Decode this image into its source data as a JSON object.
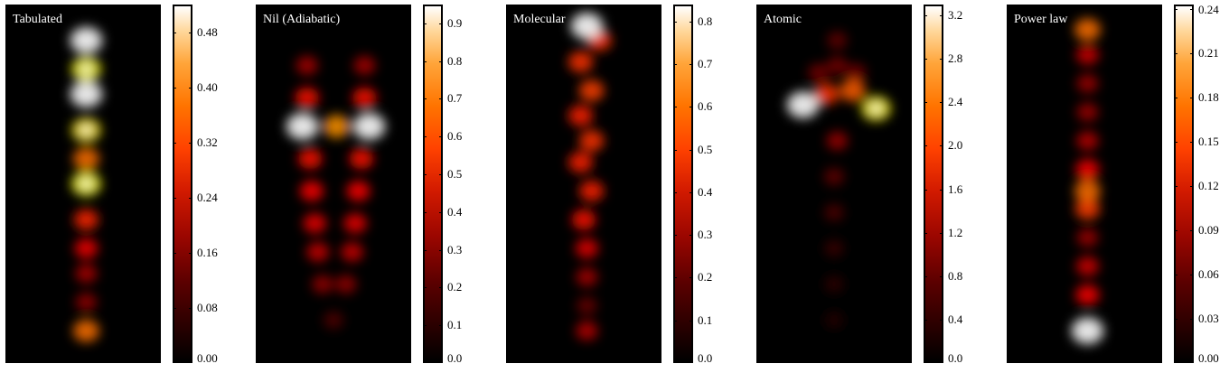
{
  "chart_data": [
    {
      "type": "heatmap",
      "title": "Tabulated",
      "colorbar": {
        "min": 0.0,
        "max": 0.52,
        "ticks": [
          0.0,
          0.08,
          0.16,
          0.24,
          0.32,
          0.4,
          0.48
        ],
        "tick_labels": [
          "0.00",
          "0.08",
          "0.16",
          "0.24",
          "0.32",
          "0.40",
          "0.48"
        ]
      },
      "colormap": "hot",
      "blobs": [
        {
          "x": 0.52,
          "y": 0.1,
          "intensity": 0.52
        },
        {
          "x": 0.52,
          "y": 0.18,
          "intensity": 0.42
        },
        {
          "x": 0.52,
          "y": 0.25,
          "intensity": 0.52
        },
        {
          "x": 0.52,
          "y": 0.35,
          "intensity": 0.4
        },
        {
          "x": 0.52,
          "y": 0.43,
          "intensity": 0.3
        },
        {
          "x": 0.52,
          "y": 0.5,
          "intensity": 0.42
        },
        {
          "x": 0.52,
          "y": 0.6,
          "intensity": 0.24
        },
        {
          "x": 0.52,
          "y": 0.68,
          "intensity": 0.2
        },
        {
          "x": 0.52,
          "y": 0.75,
          "intensity": 0.14
        },
        {
          "x": 0.52,
          "y": 0.83,
          "intensity": 0.12
        },
        {
          "x": 0.52,
          "y": 0.91,
          "intensity": 0.3
        }
      ]
    },
    {
      "type": "heatmap",
      "title": "Nil (Adiabatic)",
      "colorbar": {
        "min": 0.0,
        "max": 0.95,
        "ticks": [
          0.0,
          0.1,
          0.2,
          0.3,
          0.4,
          0.5,
          0.6,
          0.7,
          0.8,
          0.9
        ],
        "tick_labels": [
          "0.0",
          "0.1",
          "0.2",
          "0.3",
          "0.4",
          "0.5",
          "0.6",
          "0.7",
          "0.8",
          "0.9"
        ]
      },
      "colormap": "hot",
      "blobs": [
        {
          "x": 0.3,
          "y": 0.34,
          "intensity": 0.95
        },
        {
          "x": 0.73,
          "y": 0.34,
          "intensity": 0.95
        },
        {
          "x": 0.52,
          "y": 0.34,
          "intensity": 0.6
        },
        {
          "x": 0.33,
          "y": 0.17,
          "intensity": 0.25
        },
        {
          "x": 0.7,
          "y": 0.17,
          "intensity": 0.25
        },
        {
          "x": 0.33,
          "y": 0.26,
          "intensity": 0.4
        },
        {
          "x": 0.7,
          "y": 0.26,
          "intensity": 0.4
        },
        {
          "x": 0.35,
          "y": 0.43,
          "intensity": 0.4
        },
        {
          "x": 0.68,
          "y": 0.43,
          "intensity": 0.4
        },
        {
          "x": 0.36,
          "y": 0.52,
          "intensity": 0.38
        },
        {
          "x": 0.66,
          "y": 0.52,
          "intensity": 0.38
        },
        {
          "x": 0.38,
          "y": 0.61,
          "intensity": 0.35
        },
        {
          "x": 0.64,
          "y": 0.61,
          "intensity": 0.35
        },
        {
          "x": 0.4,
          "y": 0.69,
          "intensity": 0.3
        },
        {
          "x": 0.62,
          "y": 0.69,
          "intensity": 0.3
        },
        {
          "x": 0.43,
          "y": 0.78,
          "intensity": 0.22
        },
        {
          "x": 0.58,
          "y": 0.78,
          "intensity": 0.22
        },
        {
          "x": 0.5,
          "y": 0.88,
          "intensity": 0.12
        }
      ]
    },
    {
      "type": "heatmap",
      "title": "Molecular",
      "colorbar": {
        "min": 0.0,
        "max": 0.84,
        "ticks": [
          0.0,
          0.1,
          0.2,
          0.3,
          0.4,
          0.5,
          0.6,
          0.7,
          0.8
        ],
        "tick_labels": [
          "0.0",
          "0.1",
          "0.2",
          "0.3",
          "0.4",
          "0.5",
          "0.6",
          "0.7",
          "0.8"
        ]
      },
      "colormap": "hot",
      "blobs": [
        {
          "x": 0.52,
          "y": 0.06,
          "intensity": 0.84
        },
        {
          "x": 0.6,
          "y": 0.1,
          "intensity": 0.4
        },
        {
          "x": 0.48,
          "y": 0.16,
          "intensity": 0.4
        },
        {
          "x": 0.55,
          "y": 0.24,
          "intensity": 0.42
        },
        {
          "x": 0.48,
          "y": 0.31,
          "intensity": 0.38
        },
        {
          "x": 0.55,
          "y": 0.38,
          "intensity": 0.4
        },
        {
          "x": 0.48,
          "y": 0.44,
          "intensity": 0.38
        },
        {
          "x": 0.55,
          "y": 0.52,
          "intensity": 0.38
        },
        {
          "x": 0.5,
          "y": 0.6,
          "intensity": 0.35
        },
        {
          "x": 0.52,
          "y": 0.68,
          "intensity": 0.3
        },
        {
          "x": 0.52,
          "y": 0.76,
          "intensity": 0.22
        },
        {
          "x": 0.52,
          "y": 0.84,
          "intensity": 0.14
        },
        {
          "x": 0.52,
          "y": 0.91,
          "intensity": 0.24
        }
      ]
    },
    {
      "type": "heatmap",
      "title": "Atomic",
      "colorbar": {
        "min": 0.0,
        "max": 3.3,
        "ticks": [
          0.0,
          0.4,
          0.8,
          1.2,
          1.6,
          2.0,
          2.4,
          2.8,
          3.2
        ],
        "tick_labels": [
          "0.0",
          "0.4",
          "0.8",
          "1.2",
          "1.6",
          "2.0",
          "2.4",
          "2.8",
          "3.2"
        ]
      },
      "colormap": "hot",
      "blobs": [
        {
          "x": 0.3,
          "y": 0.28,
          "intensity": 3.3
        },
        {
          "x": 0.77,
          "y": 0.29,
          "intensity": 2.6
        },
        {
          "x": 0.45,
          "y": 0.25,
          "intensity": 1.6
        },
        {
          "x": 0.62,
          "y": 0.24,
          "intensity": 1.8
        },
        {
          "x": 0.52,
          "y": 0.1,
          "intensity": 0.5
        },
        {
          "x": 0.52,
          "y": 0.17,
          "intensity": 0.6
        },
        {
          "x": 0.4,
          "y": 0.19,
          "intensity": 0.6
        },
        {
          "x": 0.64,
          "y": 0.19,
          "intensity": 0.6
        },
        {
          "x": 0.52,
          "y": 0.38,
          "intensity": 0.8
        },
        {
          "x": 0.5,
          "y": 0.48,
          "intensity": 0.5
        },
        {
          "x": 0.5,
          "y": 0.58,
          "intensity": 0.4
        },
        {
          "x": 0.5,
          "y": 0.68,
          "intensity": 0.3
        },
        {
          "x": 0.5,
          "y": 0.78,
          "intensity": 0.25
        },
        {
          "x": 0.5,
          "y": 0.88,
          "intensity": 0.2
        }
      ]
    },
    {
      "type": "heatmap",
      "title": "Power law",
      "colorbar": {
        "min": 0.0,
        "max": 0.243,
        "ticks": [
          0.0,
          0.03,
          0.06,
          0.09,
          0.12,
          0.15,
          0.18,
          0.21,
          0.24
        ],
        "tick_labels": [
          "0.00",
          "0.03",
          "0.06",
          "0.09",
          "0.12",
          "0.15",
          "0.18",
          "0.21",
          "0.24"
        ]
      },
      "colormap": "hot",
      "blobs": [
        {
          "x": 0.52,
          "y": 0.07,
          "intensity": 0.14
        },
        {
          "x": 0.52,
          "y": 0.14,
          "intensity": 0.08
        },
        {
          "x": 0.52,
          "y": 0.22,
          "intensity": 0.06
        },
        {
          "x": 0.52,
          "y": 0.3,
          "intensity": 0.06
        },
        {
          "x": 0.52,
          "y": 0.38,
          "intensity": 0.07
        },
        {
          "x": 0.52,
          "y": 0.46,
          "intensity": 0.1
        },
        {
          "x": 0.52,
          "y": 0.52,
          "intensity": 0.14
        },
        {
          "x": 0.52,
          "y": 0.57,
          "intensity": 0.12
        },
        {
          "x": 0.52,
          "y": 0.65,
          "intensity": 0.06
        },
        {
          "x": 0.52,
          "y": 0.73,
          "intensity": 0.08
        },
        {
          "x": 0.52,
          "y": 0.81,
          "intensity": 0.1
        },
        {
          "x": 0.52,
          "y": 0.91,
          "intensity": 0.243
        }
      ]
    }
  ]
}
